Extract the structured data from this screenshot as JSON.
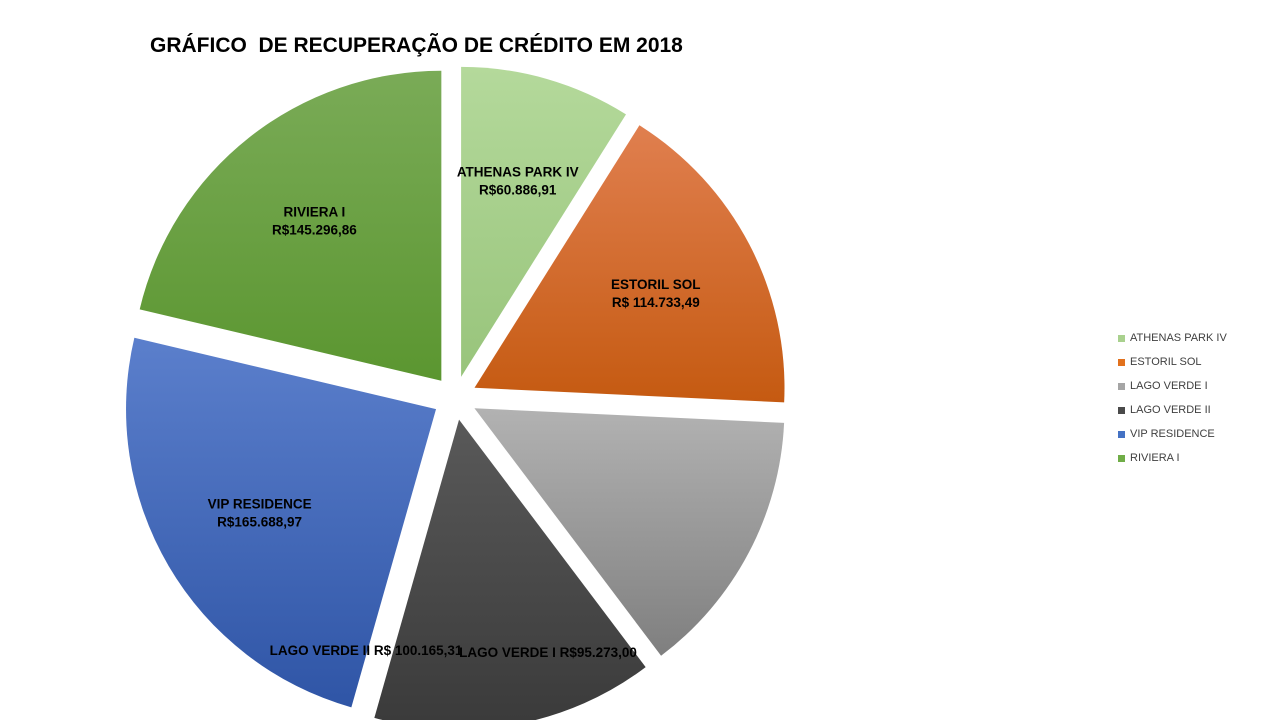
{
  "chart_data": {
    "type": "pie",
    "title": "GRÁFICO  DE RECUPERAÇÃO DE CRÉDITO EM 2018",
    "exploded": true,
    "legend_position": "right",
    "slices": [
      {
        "name": "ATHENAS PARK IV",
        "value": 60886.91,
        "label_lines": [
          "ATHENAS PARK IV",
          "R$60.886,91"
        ],
        "color": "#a9d18e",
        "color_light": "#b4d99b",
        "color_dark": "#98c47b"
      },
      {
        "name": "ESTORIL SOL",
        "value": 114733.49,
        "label_lines": [
          "ESTORIL SOL",
          "R$ 114.733,49"
        ],
        "color": "#e2711d",
        "color_light": "#e07f4f",
        "color_dark": "#c55a11"
      },
      {
        "name": "LAGO VERDE I",
        "value": 95273.0,
        "label_lines": [
          "LAGO VERDE I R$95.273,00"
        ],
        "color": "#a5a5a5",
        "color_light": "#b2b2b2",
        "color_dark": "#7f7f7f"
      },
      {
        "name": "LAGO VERDE II",
        "value": 100165.31,
        "label_lines": [
          "LAGO VERDE II R$ 100.165,31"
        ],
        "color": "#4a4a4a",
        "color_light": "#595959",
        "color_dark": "#3a3a3a"
      },
      {
        "name": "VIP RESIDENCE",
        "value": 165688.97,
        "label_lines": [
          "VIP RESIDENCE",
          "R$165.688,97"
        ],
        "color": "#4472c4",
        "color_light": "#5b7fcc",
        "color_dark": "#2f55a6"
      },
      {
        "name": "RIVIERA  I",
        "value": 145296.86,
        "label_lines": [
          "RIVIERA  I",
          "R$145.296,86"
        ],
        "color": "#70ad47",
        "color_light": "#7aab57",
        "color_dark": "#5b9630"
      }
    ],
    "legend": [
      {
        "label": "ATHENAS PARK IV",
        "color": "#a9d18e"
      },
      {
        "label": "ESTORIL SOL",
        "color": "#e2711d"
      },
      {
        "label": "LAGO VERDE I",
        "color": "#a5a5a5"
      },
      {
        "label": "LAGO VERDE II",
        "color": "#4a4a4a"
      },
      {
        "label": "VIP RESIDENCE",
        "color": "#4472c4"
      },
      {
        "label": "RIVIERA I",
        "color": "#70ad47"
      }
    ]
  }
}
